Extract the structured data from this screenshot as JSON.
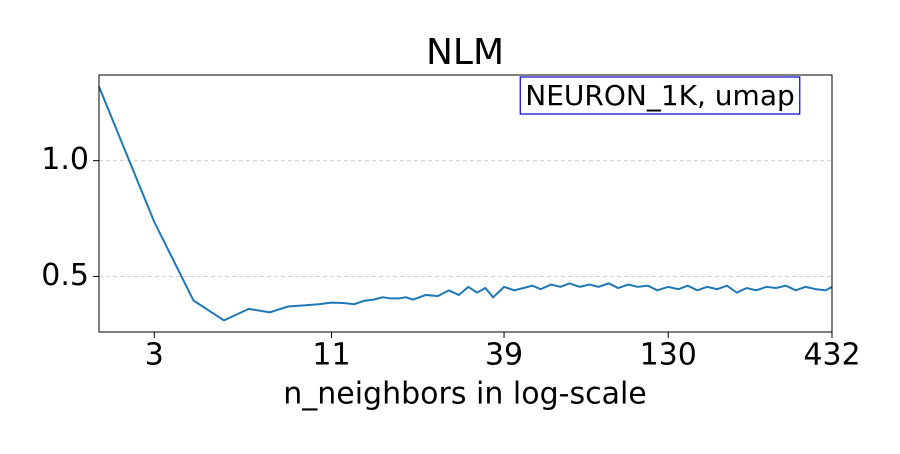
{
  "chart_data": {
    "type": "line",
    "title": "NLM",
    "xlabel": "n_neighbors in log-scale",
    "annotation": "NEURON_1K, umap",
    "annotation_border_color": "#0000cc",
    "xscale": "log",
    "xlim": [
      2,
      432
    ],
    "xticks": [
      3,
      11,
      39,
      130,
      432
    ],
    "ylim": [
      0.26,
      1.37
    ],
    "yticks": [
      {
        "value": 0.5,
        "label": "0.5"
      },
      {
        "value": 1,
        "label": "1.0"
      }
    ],
    "grid": true,
    "series": [
      {
        "name": "NLM",
        "color": "#1f77b4",
        "x": [
          2,
          3,
          4,
          5,
          6,
          7,
          8,
          9,
          10,
          11,
          12,
          13,
          14,
          15,
          16,
          17,
          18,
          19,
          20,
          22,
          24,
          26,
          28,
          30,
          32,
          34,
          36,
          39,
          42,
          45,
          48,
          51,
          55,
          59,
          63,
          68,
          73,
          78,
          84,
          90,
          97,
          104,
          112,
          120,
          130,
          140,
          150,
          161,
          173,
          186,
          200,
          215,
          231,
          248,
          267,
          287,
          308,
          331,
          356,
          383,
          412,
          432
        ],
        "values": [
          1.32,
          0.735,
          0.396,
          0.31,
          0.36,
          0.345,
          0.37,
          0.375,
          0.38,
          0.387,
          0.385,
          0.38,
          0.395,
          0.4,
          0.41,
          0.405,
          0.405,
          0.41,
          0.4,
          0.42,
          0.415,
          0.44,
          0.42,
          0.455,
          0.43,
          0.45,
          0.41,
          0.455,
          0.44,
          0.45,
          0.46,
          0.445,
          0.465,
          0.455,
          0.47,
          0.455,
          0.465,
          0.455,
          0.47,
          0.45,
          0.465,
          0.455,
          0.46,
          0.44,
          0.455,
          0.445,
          0.46,
          0.44,
          0.455,
          0.445,
          0.46,
          0.43,
          0.45,
          0.44,
          0.455,
          0.45,
          0.46,
          0.44,
          0.455,
          0.445,
          0.44,
          0.455
        ]
      }
    ]
  }
}
